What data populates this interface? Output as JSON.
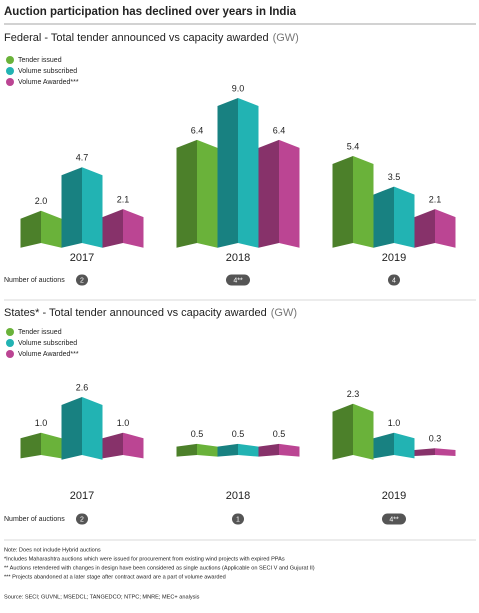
{
  "title": "Auction participation has declined over years in India",
  "chart_data": [
    {
      "type": "bar",
      "title": "Federal - Total tender announced vs capacity awarded",
      "unit": "(GW)",
      "categories": [
        "2017",
        "2018",
        "2019"
      ],
      "series": [
        {
          "name": "Tender issued",
          "color": "#6ab23a",
          "values": [
            2.0,
            6.4,
            5.4
          ],
          "value_labels": [
            "2.0",
            "6.4",
            "5.4"
          ]
        },
        {
          "name": "Volume subscribed",
          "color": "#22b3b3",
          "values": [
            4.7,
            9.0,
            3.5
          ],
          "value_labels": [
            "4.7",
            "9.0",
            "3.5"
          ]
        },
        {
          "name": "Volume Awarded***",
          "color": "#bb4593",
          "values": [
            2.1,
            6.4,
            2.1
          ],
          "value_labels": [
            "2.1",
            "6.4",
            "2.1"
          ]
        }
      ],
      "auctions_label": "Number of auctions",
      "auctions": [
        "2",
        "4**",
        "4"
      ]
    },
    {
      "type": "bar",
      "title": "States* - Total tender announced vs capacity awarded",
      "unit": "(GW)",
      "categories": [
        "2017",
        "2018",
        "2019"
      ],
      "series": [
        {
          "name": "Tender issued",
          "color": "#6ab23a",
          "values": [
            1.0,
            0.5,
            2.3
          ],
          "value_labels": [
            "1.0",
            "0.5",
            "2.3"
          ]
        },
        {
          "name": "Volume subscribed",
          "color": "#22b3b3",
          "values": [
            2.6,
            0.5,
            1.0
          ],
          "value_labels": [
            "2.6",
            "0.5",
            "1.0"
          ]
        },
        {
          "name": "Volume Awarded***",
          "color": "#bb4593",
          "values": [
            1.0,
            0.5,
            0.3
          ],
          "value_labels": [
            "1.0",
            "0.5",
            "0.3"
          ]
        }
      ],
      "auctions_label": "Number of auctions",
      "auctions": [
        "2",
        "1",
        "4**"
      ]
    }
  ],
  "notes": [
    "Note: Does not include Hybrid auctions",
    "*Includes Maharashtra auctions which were issued for procurement from existing wind projects with expired PPAs",
    "** Auctions retendered with changes in design have been considered as single auctions (Applicable on SECI V and Gujurat II)",
    "*** Projects abandoned at a later stage after contract award are a part of volume awarded"
  ],
  "source": "Source: SECI; GUVNL; MSEDCL; TANGEDCO; NTPC; MNRE; MEC+ analysis"
}
